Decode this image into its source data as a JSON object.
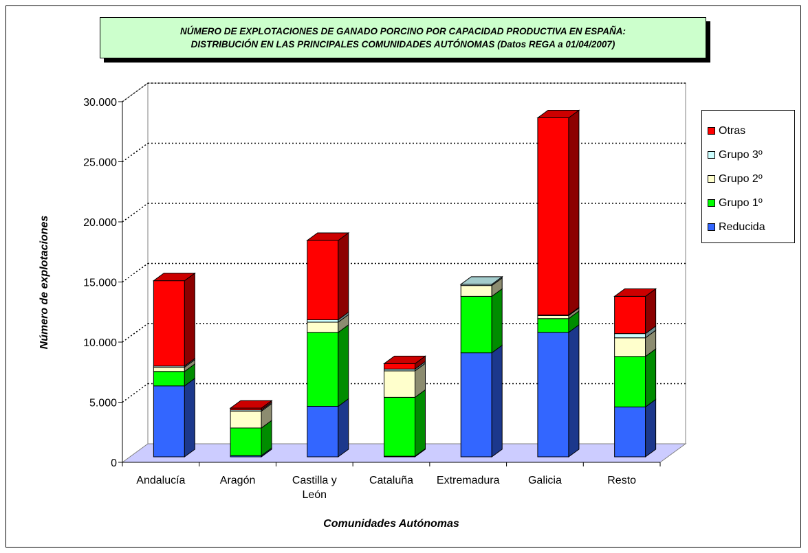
{
  "title": {
    "line1": "NÚMERO DE EXPLOTACIONES DE GANADO PORCINO POR CAPACIDAD PRODUCTIVA EN ESPAÑA:",
    "line2": "DISTRIBUCIÓN EN LAS PRINCIPALES COMUNIDADES AUTÓNOMAS (Datos REGA a 01/04/2007)"
  },
  "chart_data": {
    "type": "bar",
    "stacked": true,
    "three_d": true,
    "categories": [
      [
        "Andalucía"
      ],
      [
        "Aragón"
      ],
      [
        "Castilla y",
        "León"
      ],
      [
        "Cataluña"
      ],
      [
        "Extremadura"
      ],
      [
        "Galicia"
      ],
      [
        "Resto"
      ]
    ],
    "series": [
      {
        "name": "Reducida",
        "color": "#3366ff",
        "values": [
          5900,
          100,
          4200,
          50,
          8650,
          10350,
          4150
        ]
      },
      {
        "name": "Grupo 1º",
        "color": "#00ff00",
        "values": [
          1200,
          2300,
          6150,
          4900,
          4700,
          1150,
          4200
        ]
      },
      {
        "name": "Grupo 2º",
        "color": "#ffffcc",
        "values": [
          350,
          1400,
          850,
          2200,
          900,
          250,
          1550
        ]
      },
      {
        "name": "Grupo 3º",
        "color": "#ccffff",
        "values": [
          100,
          100,
          200,
          150,
          100,
          50,
          350
        ]
      },
      {
        "name": "Otras",
        "color": "#ff0000",
        "values": [
          7100,
          150,
          6600,
          450,
          0,
          16400,
          3100
        ]
      }
    ],
    "xlabel": "Comunidades Autónomas",
    "ylabel": "Número de explotaciones",
    "ylim": [
      0,
      30000
    ],
    "yticks": [
      "0",
      "5.000",
      "10.000",
      "15.000",
      "20.000",
      "25.000",
      "30.000"
    ],
    "grid": true,
    "legend_position": "right"
  }
}
